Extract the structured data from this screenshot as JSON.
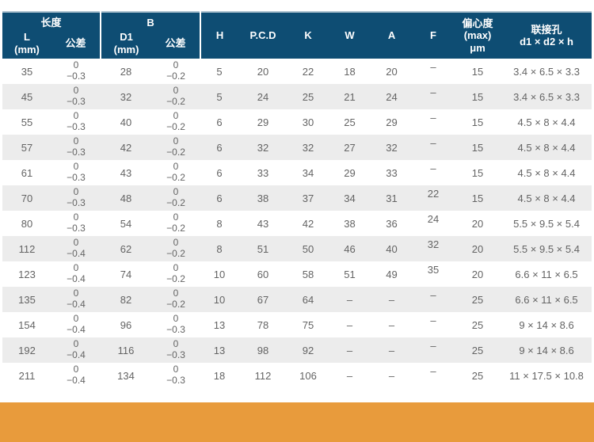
{
  "colors": {
    "header_bg": "#0e4d73",
    "header_edge": "#aec3d0",
    "row_alt": "#ececec",
    "text": "#646464",
    "orange": "#e89b3c"
  },
  "header": {
    "group_length": "长度",
    "group_b": "B",
    "col_l": "L\n(mm)",
    "col_tol1": "公差",
    "col_d1": "D1\n(mm)",
    "col_tol2": "公差",
    "col_h": "H",
    "col_pcd": "P.C.D",
    "col_k": "K",
    "col_w": "W",
    "col_a": "A",
    "col_f": "F",
    "col_ecc": "偏心度\n(max)\nμm",
    "col_hole": "联接孔\nd1 × d2 × h"
  },
  "table": {
    "rows": [
      {
        "l": "35",
        "l_tol": [
          "0",
          "−0.3"
        ],
        "d1": "28",
        "b_tol": [
          "0",
          "−0.2"
        ],
        "h": "5",
        "pcd": "20",
        "k": "22",
        "w": "18",
        "a": "20",
        "f": "–",
        "ecc": "15",
        "hole": "3.4 × 6.5 × 3.3"
      },
      {
        "l": "45",
        "l_tol": [
          "0",
          "−0.3"
        ],
        "d1": "32",
        "b_tol": [
          "0",
          "−0.2"
        ],
        "h": "5",
        "pcd": "24",
        "k": "25",
        "w": "21",
        "a": "24",
        "f": "–",
        "ecc": "15",
        "hole": "3.4 × 6.5 × 3.3"
      },
      {
        "l": "55",
        "l_tol": [
          "0",
          "−0.3"
        ],
        "d1": "40",
        "b_tol": [
          "0",
          "−0.2"
        ],
        "h": "6",
        "pcd": "29",
        "k": "30",
        "w": "25",
        "a": "29",
        "f": "–",
        "ecc": "15",
        "hole": "4.5 × 8 × 4.4"
      },
      {
        "l": "57",
        "l_tol": [
          "0",
          "−0.3"
        ],
        "d1": "42",
        "b_tol": [
          "0",
          "−0.2"
        ],
        "h": "6",
        "pcd": "32",
        "k": "32",
        "w": "27",
        "a": "32",
        "f": "–",
        "ecc": "15",
        "hole": "4.5 × 8 × 4.4"
      },
      {
        "l": "61",
        "l_tol": [
          "0",
          "−0.3"
        ],
        "d1": "43",
        "b_tol": [
          "0",
          "−0.2"
        ],
        "h": "6",
        "pcd": "33",
        "k": "34",
        "w": "29",
        "a": "33",
        "f": "–",
        "ecc": "15",
        "hole": "4.5 × 8 × 4.4"
      },
      {
        "l": "70",
        "l_tol": [
          "0",
          "−0.3"
        ],
        "d1": "48",
        "b_tol": [
          "0",
          "−0.2"
        ],
        "h": "6",
        "pcd": "38",
        "k": "37",
        "w": "34",
        "a": "31",
        "f": "22",
        "ecc": "15",
        "hole": "4.5 × 8 × 4.4"
      },
      {
        "l": "80",
        "l_tol": [
          "0",
          "−0.3"
        ],
        "d1": "54",
        "b_tol": [
          "0",
          "−0.2"
        ],
        "h": "8",
        "pcd": "43",
        "k": "42",
        "w": "38",
        "a": "36",
        "f": "24",
        "ecc": "20",
        "hole": "5.5 × 9.5 × 5.4"
      },
      {
        "l": "112",
        "l_tol": [
          "0",
          "−0.4"
        ],
        "d1": "62",
        "b_tol": [
          "0",
          "−0.2"
        ],
        "h": "8",
        "pcd": "51",
        "k": "50",
        "w": "46",
        "a": "40",
        "f": "32",
        "ecc": "20",
        "hole": "5.5 × 9.5 × 5.4"
      },
      {
        "l": "123",
        "l_tol": [
          "0",
          "−0.4"
        ],
        "d1": "74",
        "b_tol": [
          "0",
          "−0.2"
        ],
        "h": "10",
        "pcd": "60",
        "k": "58",
        "w": "51",
        "a": "49",
        "f": "35",
        "ecc": "20",
        "hole": "6.6 × 11 × 6.5"
      },
      {
        "l": "135",
        "l_tol": [
          "0",
          "−0.4"
        ],
        "d1": "82",
        "b_tol": [
          "0",
          "−0.2"
        ],
        "h": "10",
        "pcd": "67",
        "k": "64",
        "w": "–",
        "a": "–",
        "f": "–",
        "ecc": "25",
        "hole": "6.6 × 11 × 6.5"
      },
      {
        "l": "154",
        "l_tol": [
          "0",
          "−0.4"
        ],
        "d1": "96",
        "b_tol": [
          "0",
          "−0.3"
        ],
        "h": "13",
        "pcd": "78",
        "k": "75",
        "w": "–",
        "a": "–",
        "f": "–",
        "ecc": "25",
        "hole": "9 × 14 × 8.6"
      },
      {
        "l": "192",
        "l_tol": [
          "0",
          "−0.4"
        ],
        "d1": "116",
        "b_tol": [
          "0",
          "−0.3"
        ],
        "h": "13",
        "pcd": "98",
        "k": "92",
        "w": "–",
        "a": "–",
        "f": "–",
        "ecc": "25",
        "hole": "9 × 14 × 8.6"
      },
      {
        "l": "211",
        "l_tol": [
          "0",
          "−0.4"
        ],
        "d1": "134",
        "b_tol": [
          "0",
          "−0.3"
        ],
        "h": "18",
        "pcd": "112",
        "k": "106",
        "w": "–",
        "a": "–",
        "f": "–",
        "ecc": "25",
        "hole": "11 × 17.5 × 10.8"
      }
    ]
  }
}
